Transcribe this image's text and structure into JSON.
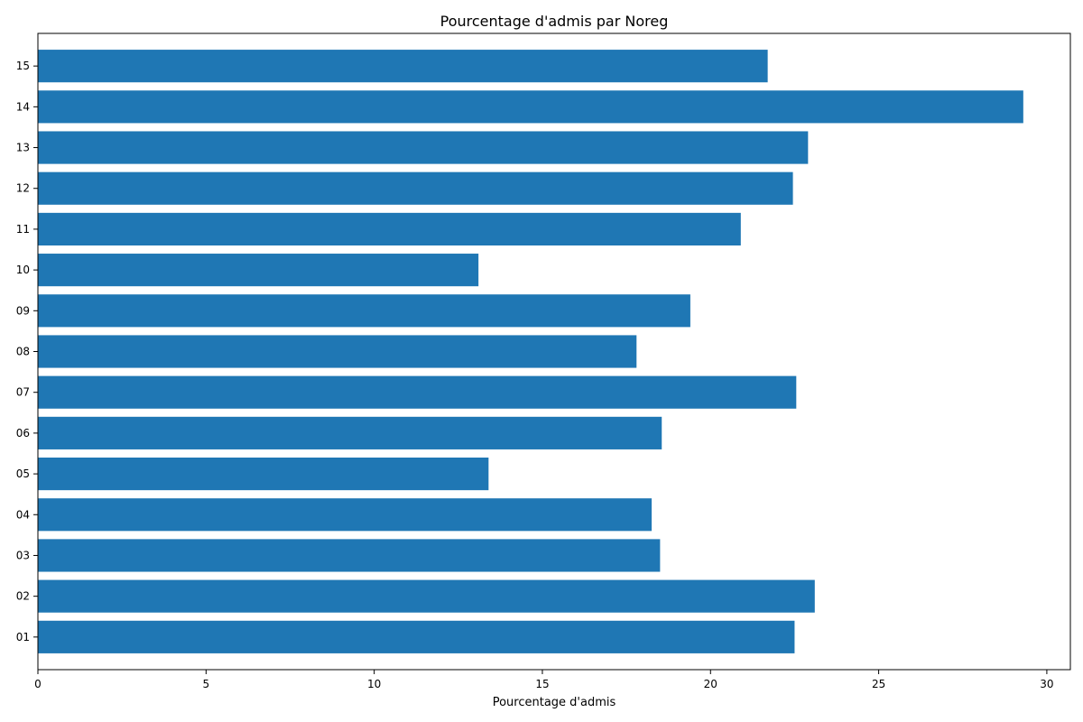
{
  "chart_data": {
    "type": "bar",
    "orientation": "horizontal",
    "title": "Pourcentage d'admis par Noreg",
    "xlabel": "Pourcentage d'admis",
    "ylabel": "",
    "xlim": [
      0,
      30.7
    ],
    "xticks": [
      0,
      5,
      10,
      15,
      20,
      25,
      30
    ],
    "categories": [
      "01",
      "02",
      "03",
      "04",
      "05",
      "06",
      "07",
      "08",
      "09",
      "10",
      "11",
      "12",
      "13",
      "14",
      "15"
    ],
    "values": [
      22.5,
      23.1,
      18.5,
      18.25,
      13.4,
      18.55,
      22.55,
      17.8,
      19.4,
      13.1,
      20.9,
      22.45,
      22.9,
      29.3,
      21.7
    ],
    "bar_color": "#1f77b4",
    "grid": false,
    "legend": "none"
  }
}
